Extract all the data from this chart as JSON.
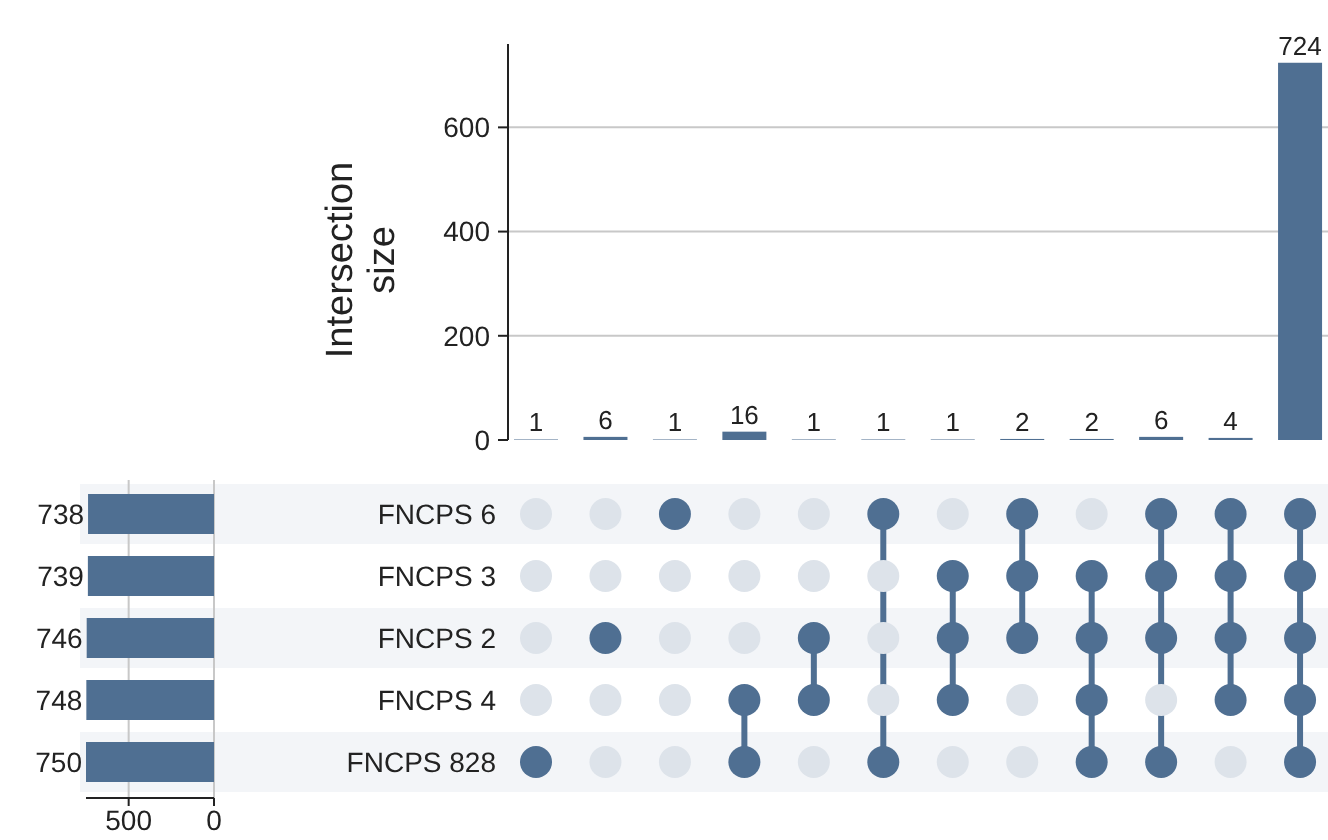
{
  "chart_data": [
    {
      "type": "bar",
      "ylabel": "Intersection size",
      "categories": [
        null,
        null,
        null,
        null,
        null,
        null,
        null,
        null,
        null,
        null,
        null,
        null
      ],
      "values": [
        1,
        6,
        1,
        16,
        1,
        1,
        1,
        2,
        2,
        6,
        4,
        724
      ],
      "color": "#4f6f92",
      "ylim": [
        0,
        760
      ],
      "yticks": [
        0,
        200,
        400,
        600
      ],
      "grid": "y",
      "data_labels": true,
      "tick_labels": "y"
    },
    {
      "type": "bar",
      "orientation": "horizontal",
      "categories": [
        "FNCPS 6",
        "FNCPS 3",
        "FNCPS 2",
        "FNCPS 4",
        "FNCPS 828"
      ],
      "values": [
        738,
        739,
        746,
        748,
        750
      ],
      "color": "#4f6f92",
      "xlim": [
        750,
        0
      ],
      "xticks": [
        500,
        0
      ],
      "grid": "x",
      "data_labels": true
    },
    {
      "type": "other",
      "cells": [
        [
          false,
          false,
          true,
          false,
          false,
          true,
          false,
          true,
          false,
          true,
          true,
          true
        ],
        [
          false,
          false,
          false,
          false,
          false,
          false,
          true,
          true,
          true,
          true,
          true,
          true
        ],
        [
          false,
          true,
          false,
          false,
          true,
          false,
          true,
          true,
          true,
          true,
          true,
          true
        ],
        [
          false,
          false,
          false,
          true,
          true,
          false,
          true,
          false,
          true,
          false,
          true,
          true
        ],
        [
          true,
          false,
          false,
          true,
          false,
          true,
          false,
          false,
          true,
          true,
          false,
          true
        ]
      ],
      "color": "#4f6f92"
    }
  ]
}
